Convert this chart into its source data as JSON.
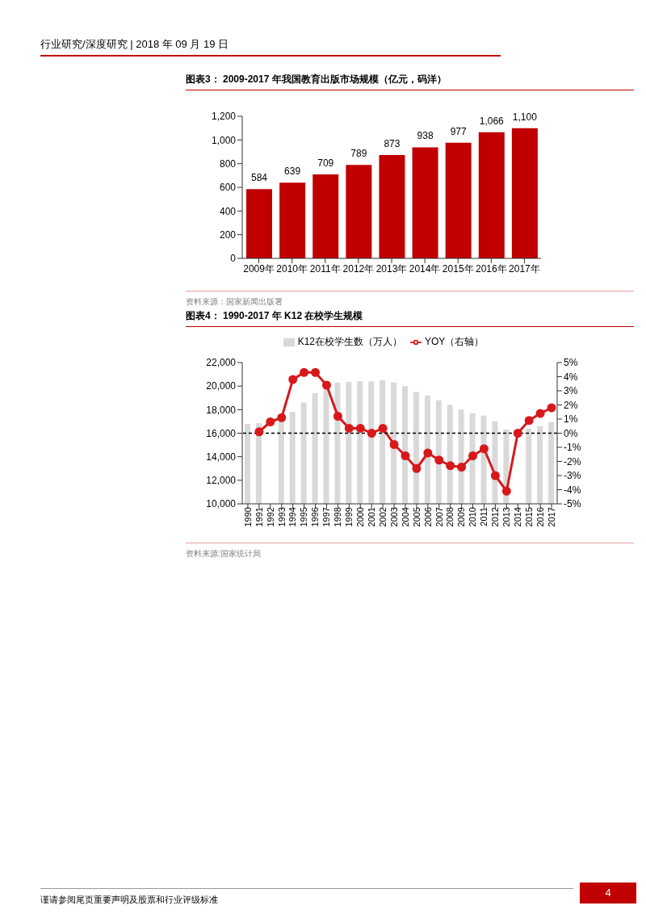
{
  "chart_data": [
    {
      "type": "bar",
      "title": "图表3： 2009-2017 年我国教育出版市场规模（亿元，码洋）",
      "categories": [
        "2009年",
        "2010年",
        "2011年",
        "2012年",
        "2013年",
        "2014年",
        "2015年",
        "2016年",
        "2017年"
      ],
      "values": [
        584,
        639,
        709,
        789,
        873,
        938,
        977,
        1066,
        1100
      ],
      "color": "#c00000",
      "value_labels": [
        "584",
        "639",
        "709",
        "789",
        "873",
        "938",
        "977",
        "1,066",
        "1,100"
      ],
      "ylim": [
        0,
        1200
      ],
      "yticks": [
        0,
        200,
        400,
        600,
        800,
        {
          "value": 1000,
          "label": "1,000"
        },
        {
          "value": 1200,
          "label": "1,200"
        }
      ],
      "grid": false,
      "legend": false,
      "annotations": [
        "行业研究/深度研究 | 2018 年 09 月 19 日",
        "资料来源：国家新闻出版署"
      ]
    },
    {
      "type": "bar",
      "title": "图表4： 1990-2017 年 K12 在校学生规模",
      "categories": [
        "1990",
        "1991",
        "1992",
        "1993",
        "1994",
        "1995",
        "1996",
        "1997",
        "1998",
        "1999",
        "2000",
        "2001",
        "2002",
        "2003",
        "2004",
        "2005",
        "2006",
        "2007",
        "2008",
        "2009",
        "2010",
        "2011",
        "2012",
        "2013",
        "2014",
        "2015",
        "2016",
        "2017"
      ],
      "series": [
        {
          "name": "K12在校学生数（万人）",
          "color": "#d9d9d9",
          "values": [
            16800,
            16850,
            null,
            17200,
            17800,
            18600,
            19400,
            19900,
            20300,
            20350,
            20400,
            20400,
            20500,
            20300,
            20000,
            19500,
            19200,
            18800,
            18400,
            18000,
            17700,
            17500,
            17000,
            16300,
            null,
            16400,
            16600,
            16950
          ]
        },
        {
          "name": "YOY（右轴）",
          "type": "line",
          "axis": "y2",
          "color": "#d7191c",
          "values": [
            null,
            0.1,
            0.8,
            1.1,
            3.8,
            4.3,
            4.3,
            3.4,
            1.2,
            0.35,
            0.35,
            0.0,
            0.35,
            -0.8,
            -1.6,
            -2.5,
            -1.4,
            -1.9,
            -2.3,
            -2.4,
            -1.6,
            -1.1,
            -3.0,
            -4.1,
            0.0,
            0.9,
            1.4,
            1.8
          ]
        }
      ],
      "marker": "circle",
      "line_style": "solid",
      "ylim": [
        10000,
        22000
      ],
      "yticks": [
        {
          "value": 10000,
          "label": "10,000"
        },
        {
          "value": 12000,
          "label": "12,000"
        },
        {
          "value": 14000,
          "label": "14,000"
        },
        {
          "value": 16000,
          "label": "16,000"
        },
        {
          "value": 18000,
          "label": "18,000"
        },
        {
          "value": 20000,
          "label": "20,000"
        },
        {
          "value": 22000,
          "label": "22,000"
        }
      ],
      "y2lim": [
        -5,
        5
      ],
      "y2ticks": [
        {
          "value": -5,
          "label": "-5%"
        },
        {
          "value": -4,
          "label": "-4%"
        },
        {
          "value": -3,
          "label": "-3%"
        },
        {
          "value": -2,
          "label": "-2%"
        },
        {
          "value": -1,
          "label": "-1%"
        },
        {
          "value": 0,
          "label": "0%"
        },
        {
          "value": 1,
          "label": "1%"
        },
        {
          "value": 2,
          "label": "2%"
        },
        {
          "value": 3,
          "label": "3%"
        },
        {
          "value": 4,
          "label": "4%"
        },
        {
          "value": 5,
          "label": "5%"
        }
      ],
      "ref_lines": [
        {
          "axis": "y2",
          "value": 0,
          "color": "#000000",
          "line_style": "dashed"
        }
      ],
      "grid": false,
      "legend": "top",
      "annotations": [
        "资料来源:国家统计局",
        "谨请参阅尾页重要声明及股票和行业评级标准",
        "4"
      ]
    }
  ]
}
